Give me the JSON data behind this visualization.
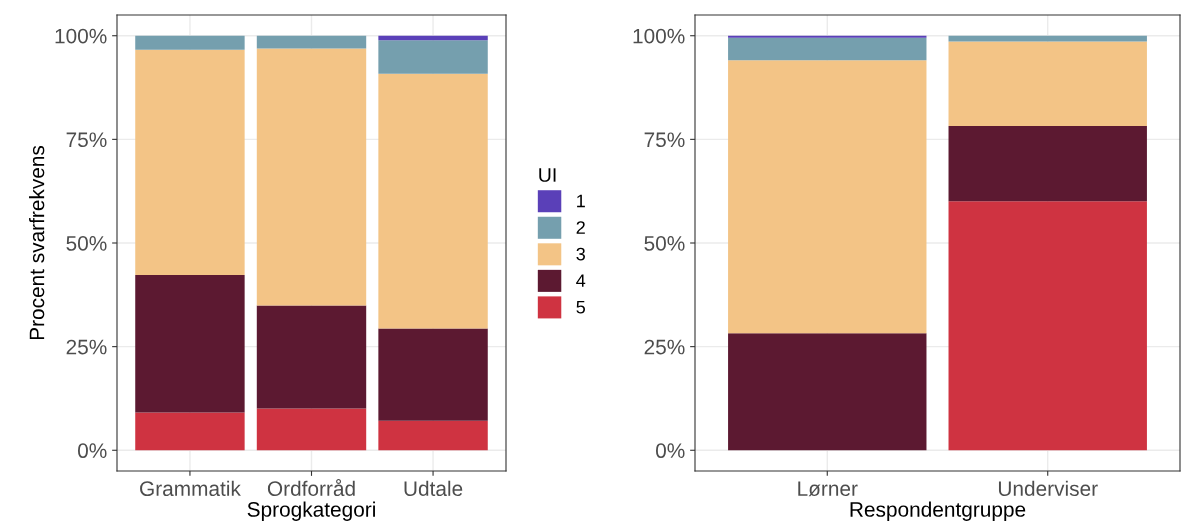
{
  "chart_data": [
    {
      "type": "bar",
      "stacked": true,
      "categories": [
        "Grammatik",
        "Ordforråd",
        "Udtale"
      ],
      "xlabel": "Sprogkategori",
      "ylabel": "Procent svarfrekvens",
      "ylim": [
        -5,
        105
      ],
      "yticks": [
        {
          "value": 0,
          "label": "0%"
        },
        {
          "value": 25,
          "label": "25%"
        },
        {
          "value": 50,
          "label": "50%"
        },
        {
          "value": 75,
          "label": "75%"
        },
        {
          "value": 100,
          "label": "100%"
        }
      ],
      "grid": true,
      "legend": "right",
      "legend_title": "UI",
      "series": [
        {
          "name": "5",
          "color": "#cf3341",
          "values": [
            9.1,
            10.1,
            7.1
          ]
        },
        {
          "name": "4",
          "color": "#5c1931",
          "values": [
            33.2,
            24.8,
            22.3
          ]
        },
        {
          "name": "3",
          "color": "#f3c486",
          "values": [
            54.3,
            62.0,
            61.4
          ]
        },
        {
          "name": "2",
          "color": "#759fae",
          "values": [
            3.4,
            3.1,
            8.1
          ]
        },
        {
          "name": "1",
          "color": "#5a40b8",
          "values": [
            0,
            0,
            1.1
          ]
        }
      ]
    },
    {
      "type": "bar",
      "stacked": true,
      "categories": [
        "Lørner",
        "Underviser"
      ],
      "xlabel": "Respondentgruppe",
      "ylim": [
        -5,
        105
      ],
      "yticks": [
        {
          "value": 0,
          "label": "0%"
        },
        {
          "value": 25,
          "label": "25%"
        },
        {
          "value": 50,
          "label": "50%"
        },
        {
          "value": 75,
          "label": "75%"
        },
        {
          "value": 100,
          "label": "100%"
        }
      ],
      "grid": true,
      "series": [
        {
          "name": "5",
          "color": "#cf3341",
          "values": [
            0,
            60.1
          ]
        },
        {
          "name": "4",
          "color": "#5c1931",
          "values": [
            28.2,
            18.1
          ]
        },
        {
          "name": "3",
          "color": "#f3c486",
          "values": [
            65.9,
            20.4
          ]
        },
        {
          "name": "2",
          "color": "#759fae",
          "values": [
            5.4,
            1.4
          ]
        },
        {
          "name": "1",
          "color": "#5a40b8",
          "values": [
            0.5,
            0
          ]
        }
      ]
    }
  ]
}
